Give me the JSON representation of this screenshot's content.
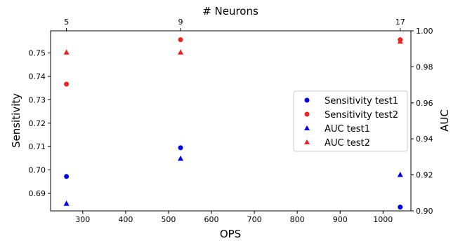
{
  "chart_data": {
    "type": "scatter",
    "title": "",
    "xlabel": "OPS",
    "ylabel": "Sensitivity",
    "y2label": "AUC",
    "x2label": "# Neurons",
    "xlim": [
      225,
      1065
    ],
    "ylim": [
      0.6825,
      0.7595
    ],
    "y2lim": [
      0.9,
      1.0
    ],
    "x_ticks": [
      300,
      400,
      500,
      600,
      700,
      800,
      900,
      1000
    ],
    "y_ticks": [
      0.69,
      0.7,
      0.71,
      0.72,
      0.73,
      0.74,
      0.75
    ],
    "y2_ticks": [
      0.9,
      0.92,
      0.94,
      0.96,
      0.98,
      1.0
    ],
    "x2_ticks": [
      {
        "x": 262,
        "label": "5"
      },
      {
        "x": 528,
        "label": "9"
      },
      {
        "x": 1040,
        "label": "17"
      }
    ],
    "grid": false,
    "legend_position": "center-right",
    "series": [
      {
        "name": "Sensitivity test1",
        "axis": "left",
        "marker": "circle",
        "color": "#0000ee",
        "points": [
          {
            "x": 262,
            "y": 0.6972
          },
          {
            "x": 528,
            "y": 0.7095
          },
          {
            "x": 1040,
            "y": 0.6841
          }
        ]
      },
      {
        "name": "Sensitivity test2",
        "axis": "left",
        "marker": "circle",
        "color": "#ee2222",
        "points": [
          {
            "x": 262,
            "y": 0.7367
          },
          {
            "x": 528,
            "y": 0.7557
          },
          {
            "x": 1040,
            "y": 0.7557
          }
        ]
      },
      {
        "name": "AUC test1",
        "axis": "right",
        "marker": "triangle",
        "color": "#0000ee",
        "points": [
          {
            "x": 262,
            "y": 0.904
          },
          {
            "x": 528,
            "y": 0.929
          },
          {
            "x": 1040,
            "y": 0.92
          }
        ]
      },
      {
        "name": "AUC test2",
        "axis": "right",
        "marker": "triangle",
        "color": "#ee2222",
        "points": [
          {
            "x": 262,
            "y": 0.988
          },
          {
            "x": 528,
            "y": 0.988
          },
          {
            "x": 1040,
            "y": 0.994
          }
        ]
      }
    ]
  }
}
